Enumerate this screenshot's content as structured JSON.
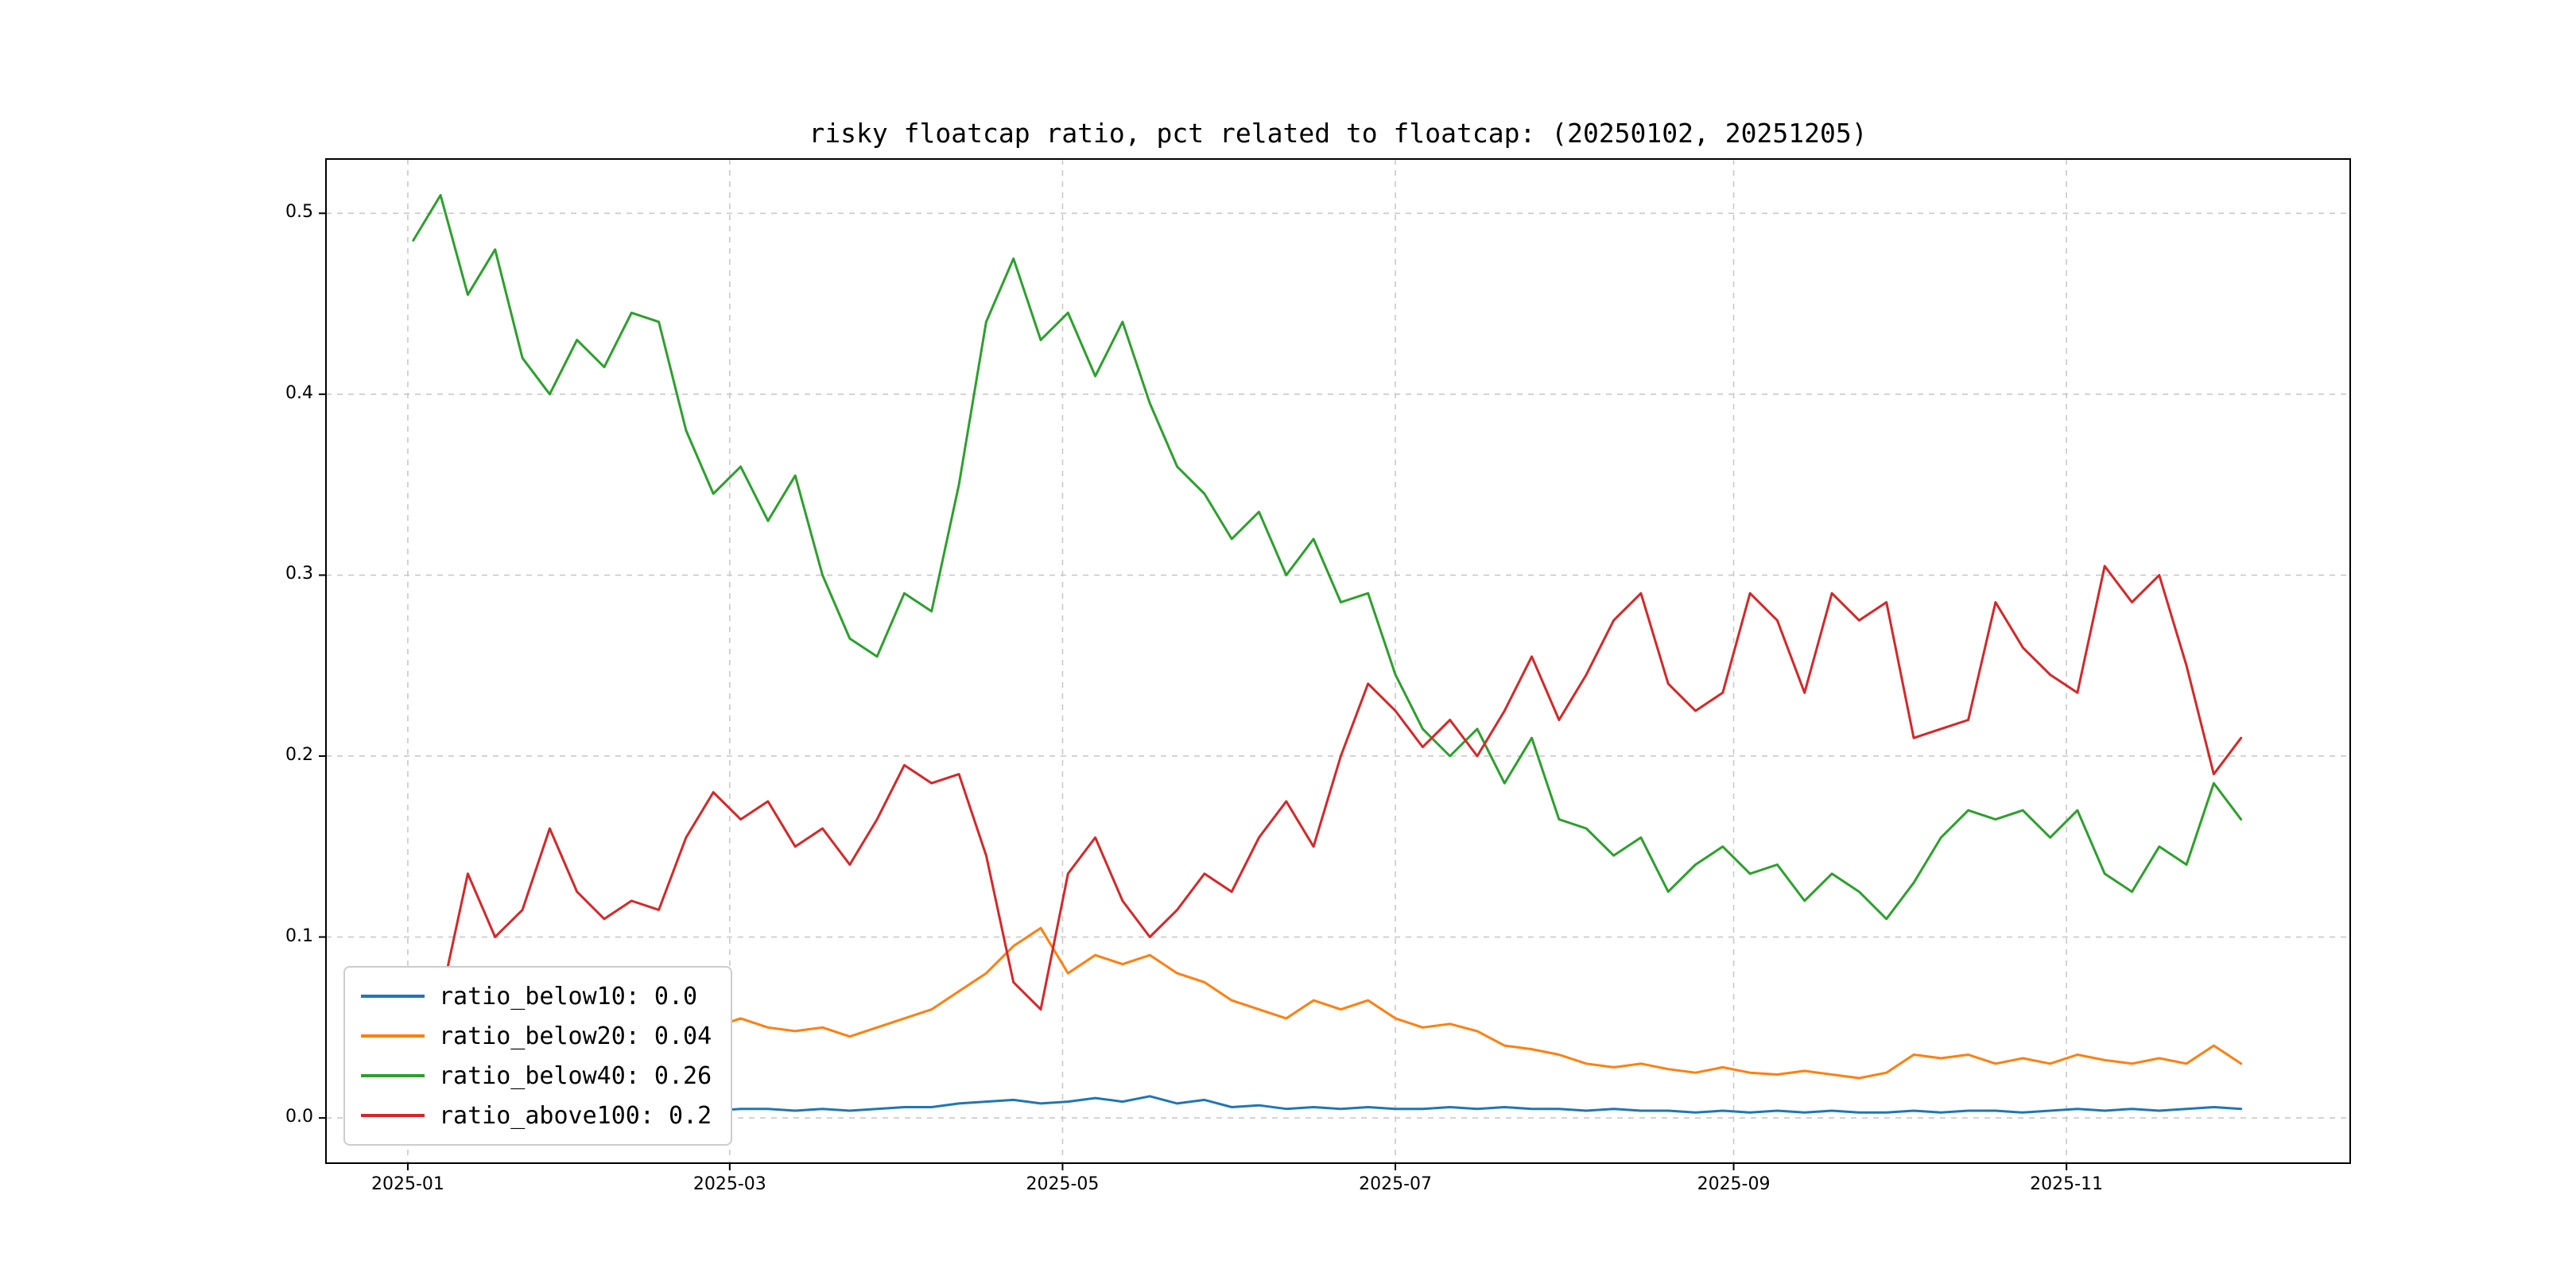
{
  "title": "risky floatcap ratio, pct related to floatcap: (20250102, 20251205)",
  "chart_data": {
    "type": "line",
    "title": "risky floatcap ratio, pct related to floatcap: (20250102, 20251205)",
    "xlabel": "",
    "ylabel": "",
    "x_unit": "days since 2025-01-01",
    "date_range": [
      "20250102",
      "20251205"
    ],
    "xlim": [
      -15,
      356
    ],
    "ylim": [
      -0.025,
      0.53
    ],
    "grid": "dashed",
    "legend_position": "lower left",
    "x_ticks": [
      {
        "day": 0,
        "label": "2025-01"
      },
      {
        "day": 59,
        "label": "2025-03"
      },
      {
        "day": 120,
        "label": "2025-05"
      },
      {
        "day": 181,
        "label": "2025-07"
      },
      {
        "day": 243,
        "label": "2025-09"
      },
      {
        "day": 304,
        "label": "2025-11"
      }
    ],
    "y_ticks": [
      {
        "value": 0.0,
        "label": "0.0"
      },
      {
        "value": 0.1,
        "label": "0.1"
      },
      {
        "value": 0.2,
        "label": "0.2"
      },
      {
        "value": 0.3,
        "label": "0.3"
      },
      {
        "value": 0.4,
        "label": "0.4"
      },
      {
        "value": 0.5,
        "label": "0.5"
      }
    ],
    "x_days": [
      1,
      6,
      11,
      16,
      21,
      26,
      31,
      36,
      41,
      46,
      51,
      56,
      61,
      66,
      71,
      76,
      81,
      86,
      91,
      96,
      101,
      106,
      111,
      116,
      121,
      126,
      131,
      136,
      141,
      146,
      151,
      156,
      161,
      166,
      171,
      176,
      181,
      186,
      191,
      196,
      201,
      206,
      211,
      216,
      221,
      226,
      231,
      236,
      241,
      246,
      251,
      256,
      261,
      266,
      271,
      276,
      281,
      286,
      291,
      296,
      301,
      306,
      311,
      316,
      321,
      326,
      331,
      336
    ],
    "series": [
      {
        "name": "ratio_below10",
        "legend_label": "ratio_below10: 0.0",
        "color": "#1f77b4",
        "values": [
          0.004,
          0.004,
          0.005,
          0.004,
          0.005,
          0.004,
          0.004,
          0.005,
          0.005,
          0.004,
          0.005,
          0.004,
          0.005,
          0.005,
          0.004,
          0.005,
          0.004,
          0.005,
          0.006,
          0.006,
          0.008,
          0.009,
          0.01,
          0.008,
          0.009,
          0.011,
          0.009,
          0.012,
          0.008,
          0.01,
          0.006,
          0.007,
          0.005,
          0.006,
          0.005,
          0.006,
          0.005,
          0.005,
          0.006,
          0.005,
          0.006,
          0.005,
          0.005,
          0.004,
          0.005,
          0.004,
          0.004,
          0.003,
          0.004,
          0.003,
          0.004,
          0.003,
          0.004,
          0.003,
          0.003,
          0.004,
          0.003,
          0.004,
          0.004,
          0.003,
          0.004,
          0.005,
          0.004,
          0.005,
          0.004,
          0.005,
          0.006,
          0.005
        ]
      },
      {
        "name": "ratio_below20",
        "legend_label": "ratio_below20: 0.04",
        "color": "#ff7f0e",
        "values": [
          0.048,
          0.052,
          0.06,
          0.05,
          0.055,
          0.048,
          0.052,
          0.055,
          0.06,
          0.065,
          0.055,
          0.05,
          0.055,
          0.05,
          0.048,
          0.05,
          0.045,
          0.05,
          0.055,
          0.06,
          0.07,
          0.08,
          0.095,
          0.105,
          0.08,
          0.09,
          0.085,
          0.09,
          0.08,
          0.075,
          0.065,
          0.06,
          0.055,
          0.065,
          0.06,
          0.065,
          0.055,
          0.05,
          0.052,
          0.048,
          0.04,
          0.038,
          0.035,
          0.03,
          0.028,
          0.03,
          0.027,
          0.025,
          0.028,
          0.025,
          0.024,
          0.026,
          0.024,
          0.022,
          0.025,
          0.035,
          0.033,
          0.035,
          0.03,
          0.033,
          0.03,
          0.035,
          0.032,
          0.03,
          0.033,
          0.03,
          0.04,
          0.03
        ]
      },
      {
        "name": "ratio_below40",
        "legend_label": "ratio_below40: 0.26",
        "color": "#2ca02c",
        "values": [
          0.485,
          0.51,
          0.455,
          0.48,
          0.42,
          0.4,
          0.43,
          0.415,
          0.445,
          0.44,
          0.38,
          0.345,
          0.36,
          0.33,
          0.355,
          0.3,
          0.265,
          0.255,
          0.29,
          0.28,
          0.35,
          0.44,
          0.475,
          0.43,
          0.445,
          0.41,
          0.44,
          0.395,
          0.36,
          0.345,
          0.32,
          0.335,
          0.3,
          0.32,
          0.285,
          0.29,
          0.245,
          0.215,
          0.2,
          0.215,
          0.185,
          0.21,
          0.165,
          0.16,
          0.145,
          0.155,
          0.125,
          0.14,
          0.15,
          0.135,
          0.14,
          0.12,
          0.135,
          0.125,
          0.11,
          0.13,
          0.155,
          0.17,
          0.165,
          0.17,
          0.155,
          0.17,
          0.135,
          0.125,
          0.15,
          0.14,
          0.185,
          0.165
        ]
      },
      {
        "name": "ratio_above100",
        "legend_label": "ratio_above100: 0.2",
        "color": "#d62728",
        "values": [
          0.05,
          0.065,
          0.135,
          0.1,
          0.115,
          0.16,
          0.125,
          0.11,
          0.12,
          0.115,
          0.155,
          0.18,
          0.165,
          0.175,
          0.15,
          0.16,
          0.14,
          0.165,
          0.195,
          0.185,
          0.19,
          0.145,
          0.075,
          0.06,
          0.135,
          0.155,
          0.12,
          0.1,
          0.115,
          0.135,
          0.125,
          0.155,
          0.175,
          0.15,
          0.2,
          0.24,
          0.225,
          0.205,
          0.22,
          0.2,
          0.225,
          0.255,
          0.22,
          0.245,
          0.275,
          0.29,
          0.24,
          0.225,
          0.235,
          0.29,
          0.275,
          0.235,
          0.29,
          0.275,
          0.285,
          0.21,
          0.215,
          0.22,
          0.285,
          0.26,
          0.245,
          0.235,
          0.305,
          0.285,
          0.3,
          0.25,
          0.19,
          0.21
        ]
      }
    ]
  }
}
